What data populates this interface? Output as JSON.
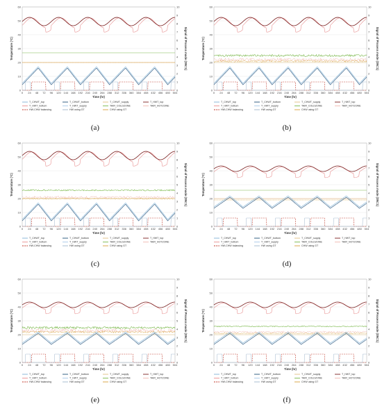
{
  "chart_data": [
    {
      "type": "line",
      "caption": "(a)",
      "xlabel": "Time (hr)",
      "ylabel": "Temperature (°C)",
      "y2label": "Signal of Process mode (ON=1)",
      "xlim": [
        0,
        504
      ],
      "ylim": [
        0,
        60
      ],
      "y2lim": [
        0,
        10
      ],
      "x_ticks": [
        0,
        24,
        48,
        72,
        96,
        120,
        144,
        168,
        192,
        216,
        240,
        264,
        288,
        312,
        336,
        360,
        384,
        408,
        432,
        456,
        480,
        504
      ],
      "y_ticks": [
        0,
        10,
        20,
        30,
        40,
        50,
        60
      ],
      "y2_ticks": [
        0,
        1,
        2,
        3,
        4,
        5,
        6,
        7,
        8,
        9,
        10
      ],
      "grid": true,
      "params": {
        "hwt_base": 49.5,
        "hwt_amp": 3,
        "chwt_base": 10,
        "chwt_amp": 6,
        "col_zone": 27,
        "hot_zone": 20,
        "chw_supply": 20,
        "hw_supply": 20,
        "noise": 0
      }
    },
    {
      "type": "line",
      "caption": "(b)",
      "xlabel": "Time (hr)",
      "ylabel": "Temperature (°C)",
      "y2label": "Signal of Process mode (ON=1)",
      "xlim": [
        0,
        504
      ],
      "ylim": [
        0,
        60
      ],
      "y2lim": [
        0,
        10
      ],
      "x_ticks": [
        0,
        24,
        48,
        72,
        96,
        120,
        144,
        168,
        192,
        216,
        240,
        264,
        288,
        312,
        336,
        360,
        384,
        408,
        432,
        456,
        480,
        504
      ],
      "y_ticks": [
        0,
        10,
        20,
        30,
        40,
        50,
        60
      ],
      "y2_ticks": [
        0,
        1,
        2,
        3,
        4,
        5,
        6,
        7,
        8,
        9,
        10
      ],
      "grid": true,
      "params": {
        "hwt_base": 49.5,
        "hwt_amp": 3,
        "chwt_base": 10,
        "chwt_amp": 6,
        "col_zone": 25,
        "hot_zone": 22,
        "chw_supply": 21,
        "hw_supply": 20,
        "noise": 1.2
      }
    },
    {
      "type": "line",
      "caption": "(c)",
      "xlabel": "Time (hr)",
      "ylabel": "Temperature (°C)",
      "y2label": "Signal of Process mode (ON=1)",
      "xlim": [
        0,
        504
      ],
      "ylim": [
        0,
        60
      ],
      "y2lim": [
        0,
        10
      ],
      "x_ticks": [
        0,
        24,
        48,
        72,
        96,
        120,
        144,
        168,
        192,
        216,
        240,
        264,
        288,
        312,
        336,
        360,
        384,
        408,
        432,
        456,
        480,
        504
      ],
      "y_ticks": [
        0,
        10,
        20,
        30,
        40,
        50,
        60
      ],
      "y2_ticks": [
        0,
        1,
        2,
        3,
        4,
        5,
        6,
        7,
        8,
        9,
        10
      ],
      "grid": true,
      "params": {
        "hwt_base": 51,
        "hwt_amp": 3,
        "chwt_base": 10,
        "chwt_amp": 6,
        "col_zone": 26,
        "hot_zone": 21,
        "chw_supply": 20,
        "hw_supply": 20,
        "noise": 0.8
      }
    },
    {
      "type": "line",
      "caption": "(d)",
      "xlabel": "Time (hr)",
      "ylabel": "Temperature (°C)",
      "y2label": "Signal of Process mode (ON=1)",
      "xlim": [
        0,
        504
      ],
      "ylim": [
        0,
        60
      ],
      "y2lim": [
        0,
        10
      ],
      "x_ticks": [
        0,
        24,
        48,
        72,
        96,
        120,
        144,
        168,
        192,
        216,
        240,
        264,
        288,
        312,
        336,
        360,
        384,
        408,
        432,
        456,
        480,
        504
      ],
      "y_ticks": [
        0,
        10,
        20,
        30,
        40,
        50,
        60
      ],
      "y2_ticks": [
        0,
        1,
        2,
        3,
        4,
        5,
        6,
        7,
        8,
        9,
        10
      ],
      "grid": true,
      "params": {
        "hwt_base": 41.5,
        "hwt_amp": 2,
        "chwt_base": 17,
        "chwt_amp": 4,
        "col_zone": 26,
        "hot_zone": 20,
        "chw_supply": 19,
        "hw_supply": 20,
        "noise": 0
      }
    },
    {
      "type": "line",
      "caption": "(e)",
      "xlabel": "Time (hr)",
      "ylabel": "Temperature (°C)",
      "y2label": "Signal of Process mode (ON=1)",
      "xlim": [
        0,
        504
      ],
      "ylim": [
        0,
        60
      ],
      "y2lim": [
        0,
        10
      ],
      "x_ticks": [
        0,
        24,
        48,
        72,
        96,
        120,
        144,
        168,
        192,
        216,
        240,
        264,
        288,
        312,
        336,
        360,
        384,
        408,
        432,
        456,
        480,
        504
      ],
      "y_ticks": [
        0,
        10,
        20,
        30,
        40,
        50,
        60
      ],
      "y2_ticks": [
        0,
        1,
        2,
        3,
        4,
        5,
        6,
        7,
        8,
        9,
        10
      ],
      "grid": true,
      "params": {
        "hwt_base": 41.5,
        "hwt_amp": 2,
        "chwt_base": 17,
        "chwt_amp": 4,
        "col_zone": 25,
        "hot_zone": 23,
        "chw_supply": 22,
        "hw_supply": 20,
        "noise": 1.3
      }
    },
    {
      "type": "line",
      "caption": "(f)",
      "xlabel": "Time (hr)",
      "ylabel": "Temperature (°C)",
      "y2label": "Signal of Process mode (ON=1)",
      "xlim": [
        0,
        504
      ],
      "ylim": [
        0,
        60
      ],
      "y2lim": [
        0,
        10
      ],
      "x_ticks": [
        0,
        24,
        48,
        72,
        96,
        120,
        144,
        168,
        192,
        216,
        240,
        264,
        288,
        312,
        336,
        360,
        384,
        408,
        432,
        456,
        480,
        504
      ],
      "y_ticks": [
        0,
        10,
        20,
        30,
        40,
        50,
        60
      ],
      "y2_ticks": [
        0,
        1,
        2,
        3,
        4,
        5,
        6,
        7,
        8,
        9,
        10
      ],
      "grid": true,
      "params": {
        "hwt_base": 41.5,
        "hwt_amp": 2,
        "chwt_base": 17,
        "chwt_amp": 4,
        "col_zone": 26,
        "hot_zone": 22,
        "chw_supply": 21,
        "hw_supply": 20,
        "noise": 0.6
      }
    }
  ],
  "legend": [
    {
      "name": "T_CHWT_top",
      "color": "#7fb2d6",
      "dash": ""
    },
    {
      "name": "T_CHWT_bottom",
      "color": "#1f4e79",
      "dash": ""
    },
    {
      "name": "T_CHWT_supply",
      "color": "#e0c080",
      "dash": ""
    },
    {
      "name": "T_HWT_top",
      "color": "#7b2020",
      "dash": ""
    },
    {
      "name": "T_HWT_bottom",
      "color": "#e89090",
      "dash": ""
    },
    {
      "name": "T_HWT_supply",
      "color": "#a6c8e8",
      "dash": ""
    },
    {
      "name": "TAIR_COLDZONE",
      "color": "#7ab84a",
      "dash": ""
    },
    {
      "name": "TAIR_HOTZONE",
      "color": "#f2b8b0",
      "dash": ""
    },
    {
      "name": "HW-CHW balancing",
      "color": "#c0392b",
      "dash": "2,1.2"
    },
    {
      "name": "HW using GT",
      "color": "#9fb6cc",
      "dash": ""
    },
    {
      "name": "CHW using GT",
      "color": "#d7a13a",
      "dash": ""
    }
  ]
}
